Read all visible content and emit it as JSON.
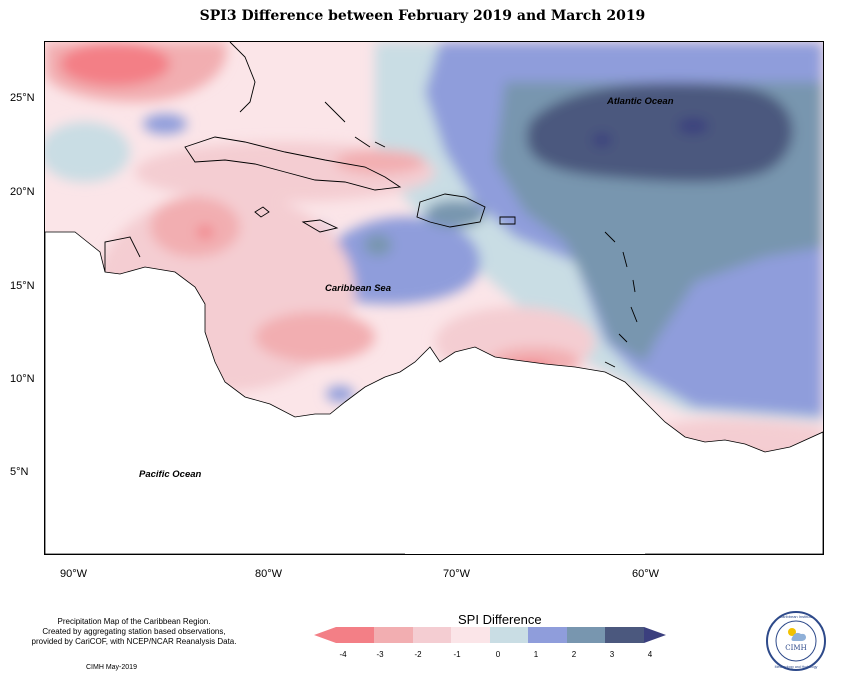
{
  "title": "SPI3 Difference between February 2019 and March 2019",
  "y_ticks": [
    "25°N",
    "20°N",
    "15°N",
    "10°N",
    "5°N"
  ],
  "x_ticks": [
    "90°W",
    "80°W",
    "70°W",
    "60°W"
  ],
  "map_labels": {
    "atlantic": "Atlantic Ocean",
    "caribbean": "Caribbean Sea",
    "pacific": "Pacific Ocean"
  },
  "credits": [
    "Precipitation Map of the Caribbean Region.",
    "Created by aggregating station based observations,",
    "provided by CariCOF, with NCEP/NCAR Reanalysis Data."
  ],
  "cimh_date": "CIMH May-2019",
  "legend": {
    "title": "SPI Difference",
    "ticks": [
      "-4",
      "-3",
      "-2",
      "-1",
      "0",
      "1",
      "2",
      "3",
      "4"
    ],
    "colors": [
      "#f37f86",
      "#f2aeb1",
      "#f4cdd2",
      "#fbe5e8",
      "#c9dde4",
      "#8f9ddb",
      "#7896af",
      "#4b587e"
    ]
  },
  "logo": {
    "top_text": "Caribbean Institute",
    "center_text": "CIMH",
    "bottom_text": "Meteorology and Hydrology"
  },
  "colors": {
    "dry_strong": "#f37f86",
    "dry": "#f2aeb1",
    "dry_light": "#f4cdd2",
    "neutral_dry": "#fbe5e8",
    "neutral_wet": "#c9dde4",
    "wet": "#8f9ddb",
    "wet_strong": "#7896af",
    "wet_very": "#4b587e",
    "wet_extreme": "#3b3f7e"
  }
}
